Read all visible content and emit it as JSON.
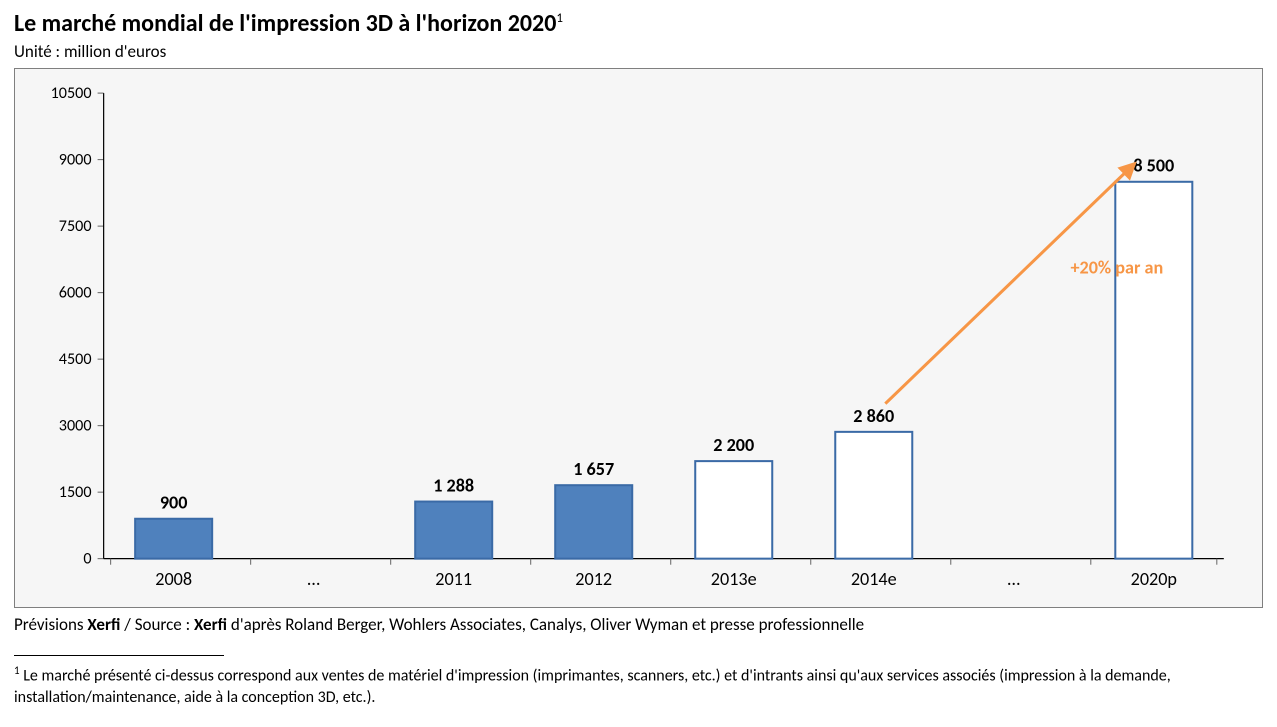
{
  "header": {
    "title_main": "Le marché mondial de l'impression 3D à l'horizon 2020",
    "title_sup": "1",
    "subtitle": "Unité : million d'euros"
  },
  "chart": {
    "type": "bar",
    "categories": [
      "2008",
      "…",
      "2011",
      "2012",
      "2013e",
      "2014e",
      "…",
      "2020p"
    ],
    "values": [
      900,
      null,
      1288,
      1657,
      2200,
      2860,
      null,
      8500
    ],
    "value_labels": [
      "900",
      "",
      "1 288",
      "1 657",
      "2 200",
      "2 860",
      "",
      "8 500"
    ],
    "bar_fill": [
      "#4f81bd",
      null,
      "#4f81bd",
      "#4f81bd",
      "#ffffff",
      "#ffffff",
      null,
      "#ffffff"
    ],
    "bar_stroke": "#3a6aa6",
    "bar_stroke_width": 2,
    "bar_width_ratio": 0.55,
    "background_color": "#f6f6f6",
    "frame_border_color": "#7f7f7f",
    "axis_color": "#000000",
    "tick_color": "#666666",
    "value_label_fontsize": 18,
    "value_label_fontweight": 700,
    "xlabel_fontsize": 18,
    "ytick_fontsize": 16,
    "ylim": [
      0,
      10500
    ],
    "yticks": [
      0,
      1500,
      3000,
      4500,
      6000,
      7500,
      9000,
      10500
    ],
    "annotation": {
      "text": "+20% par an",
      "fontsize": 18,
      "fontweight": 700,
      "color": "#f79646",
      "arrow": {
        "from_bar_index": 5,
        "to_bar_index": 7,
        "to_value": 8500,
        "stroke": "#f79646",
        "width": 3
      },
      "text_dx": -60,
      "text_dy": -190
    }
  },
  "source": {
    "prefix": "Prévisions ",
    "b1": "Xerfi",
    "mid": " / Source : ",
    "b2": "Xerfi",
    "rest": " d'après Roland Berger, Wohlers Associates, Canalys, Oliver Wyman et presse professionnelle"
  },
  "footnote": {
    "sup": "1",
    "text": " Le marché présenté ci-dessus correspond aux ventes de matériel d'impression (imprimantes, scanners, etc.) et d'intrants ainsi qu'aux services associés (impression à la demande, installation/maintenance, aide à la conception 3D, etc.)."
  }
}
